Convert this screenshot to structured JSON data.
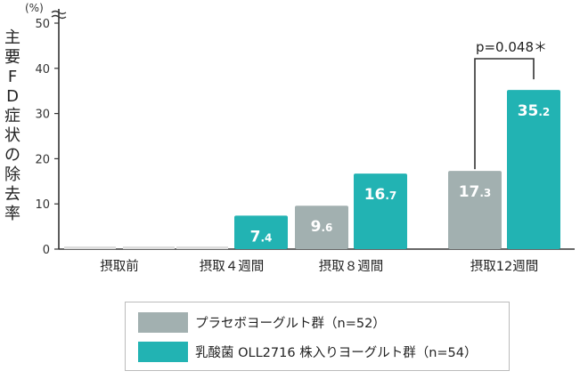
{
  "chart_data": {
    "type": "bar",
    "ylabel": "主要FD症状の除去率",
    "unit": "(%)",
    "ylim": [
      0,
      50
    ],
    "yticks": [
      0,
      10,
      20,
      30,
      40,
      50
    ],
    "categories": [
      "摂取前",
      "摂取４週間",
      "摂取８週間",
      "摂取12週間"
    ],
    "series": [
      {
        "name": "プラセボヨーグルト群（n=52）",
        "color": "#a2b0b0",
        "values": [
          0,
          0,
          9.6,
          17.3
        ],
        "labels": [
          "",
          "",
          "9.6",
          "17.3"
        ]
      },
      {
        "name": "乳酸菌 OLL2716 株入りヨーグルト群（n=54）",
        "color": "#22b3b3",
        "values": [
          0,
          7.4,
          16.7,
          35.2
        ],
        "labels": [
          "",
          "7.4",
          "16.7",
          "35.2"
        ]
      }
    ],
    "baseline_color": "#dddddd",
    "annotation": {
      "text": "p=0.048＊",
      "category": "摂取12週間"
    },
    "legend_position": "bottom"
  }
}
